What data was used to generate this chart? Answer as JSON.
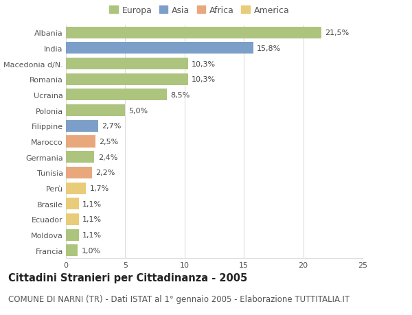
{
  "countries": [
    "Albania",
    "India",
    "Macedonia d/N.",
    "Romania",
    "Ucraina",
    "Polonia",
    "Filippine",
    "Marocco",
    "Germania",
    "Tunisia",
    "Perù",
    "Brasile",
    "Ecuador",
    "Moldova",
    "Francia"
  ],
  "values": [
    21.5,
    15.8,
    10.3,
    10.3,
    8.5,
    5.0,
    2.7,
    2.5,
    2.4,
    2.2,
    1.7,
    1.1,
    1.1,
    1.1,
    1.0
  ],
  "labels": [
    "21,5%",
    "15,8%",
    "10,3%",
    "10,3%",
    "8,5%",
    "5,0%",
    "2,7%",
    "2,5%",
    "2,4%",
    "2,2%",
    "1,7%",
    "1,1%",
    "1,1%",
    "1,1%",
    "1,0%"
  ],
  "continents": [
    "Europa",
    "Asia",
    "Europa",
    "Europa",
    "Europa",
    "Europa",
    "Asia",
    "Africa",
    "Europa",
    "Africa",
    "America",
    "America",
    "America",
    "Europa",
    "Europa"
  ],
  "continent_colors": {
    "Europa": "#adc47e",
    "Asia": "#7b9fc8",
    "Africa": "#e8a87c",
    "America": "#e8cc7a"
  },
  "legend_order": [
    "Europa",
    "Asia",
    "Africa",
    "America"
  ],
  "legend_colors": [
    "#adc47e",
    "#7b9fc8",
    "#e8a87c",
    "#e8cc7a"
  ],
  "xlim": [
    0,
    25
  ],
  "xticks": [
    0,
    5,
    10,
    15,
    20,
    25
  ],
  "background_color": "#ffffff",
  "plot_bg_color": "#ffffff",
  "title": "Cittadini Stranieri per Cittadinanza - 2005",
  "subtitle": "COMUNE DI NARNI (TR) - Dati ISTAT al 1° gennaio 2005 - Elaborazione TUTTITALIA.IT",
  "title_fontsize": 10.5,
  "subtitle_fontsize": 8.5,
  "bar_height": 0.75,
  "label_fontsize": 8,
  "tick_fontsize": 8,
  "legend_fontsize": 9,
  "grid_color": "#dddddd",
  "text_color": "#555555"
}
